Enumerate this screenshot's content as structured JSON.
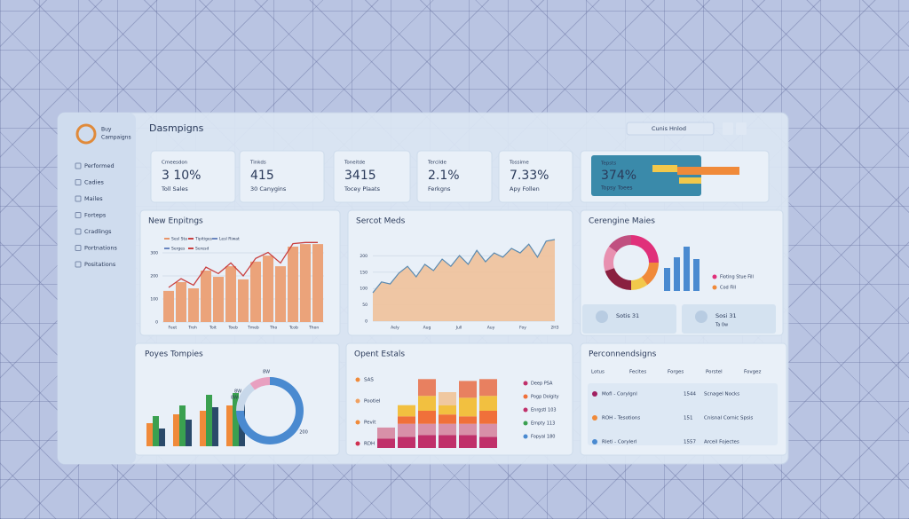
{
  "sidebar": {
    "brand": [
      "Buy",
      "Campaigns"
    ],
    "items": [
      "Performed",
      "Cadies",
      "Mailes",
      "Forteps",
      "Cradlings",
      "Portnations",
      "Positations"
    ]
  },
  "header": {
    "title": "Dasmpigns",
    "search": "Cunis Hnlod"
  },
  "kpis": [
    {
      "label": "Cmeesdon",
      "value": "3 10%",
      "sub": "Toll Sales"
    },
    {
      "label": "Tinkds",
      "value": "415",
      "sub": "30 Canygins"
    },
    {
      "label": "Toneitde",
      "value": "3415",
      "sub": "Tocey Plaats"
    },
    {
      "label": "Tercilde",
      "value": "2.1%",
      "sub": "Ferkgns"
    },
    {
      "label": "Tossime",
      "value": "7.33%",
      "sub": "Apy Follen"
    }
  ],
  "highlight": {
    "label": "Tepsts",
    "value": "374%",
    "sub": "Topsy Toees"
  },
  "new_earnings": {
    "title": "New Enpitngs",
    "legend": [
      {
        "name": "Sesl Sta",
        "color": "#e8956a"
      },
      {
        "name": "Tipitiges",
        "color": "#c94040"
      },
      {
        "name": "Lesl Riwat",
        "color": "#6a86c0"
      },
      {
        "name": "Serges",
        "color": "#6a86c0"
      },
      {
        "name": "Seresd",
        "color": "#c94040"
      }
    ],
    "ylim": [
      0,
      350
    ],
    "yticks": [
      0,
      100,
      200,
      300
    ],
    "xlabels": [
      "Feet",
      "Troh",
      "Toit",
      "Toeb",
      "Tmeb",
      "Tho",
      "Tcob",
      "Thon"
    ],
    "bars": [
      135,
      173,
      146,
      223,
      196,
      242,
      185,
      262,
      288,
      242,
      327,
      338,
      338
    ],
    "line": [
      150,
      188,
      160,
      238,
      210,
      256,
      200,
      276,
      302,
      256,
      340,
      345,
      345
    ]
  },
  "sales_trend": {
    "title": "Sercot Meds",
    "ylim": [
      0,
      250
    ],
    "yticks": [
      0,
      50,
      100,
      150,
      200
    ],
    "xlabels": [
      "Aely",
      "Aug",
      "Jull",
      "Auy",
      "Foy",
      "2H3"
    ],
    "values": [
      87,
      120,
      114,
      147,
      168,
      136,
      174,
      155,
      190,
      168,
      201,
      174,
      217,
      182,
      209,
      196,
      223,
      209,
      236,
      196,
      245,
      250
    ]
  },
  "categories_panel": {
    "title": "Cerengine Maies",
    "donut": [
      {
        "color": "#e0307a",
        "value": 25
      },
      {
        "color": "#f08a3a",
        "value": 15
      },
      {
        "color": "#f2c84b",
        "value": 10
      },
      {
        "color": "#8a2040",
        "value": 20
      },
      {
        "color": "#e890b0",
        "value": 15
      },
      {
        "color": "#c05080",
        "value": 15
      }
    ],
    "bars": [
      26,
      38,
      50,
      36
    ],
    "bar_color": "#4a8ad0",
    "legend": [
      {
        "name": "Fioting Stue Fill",
        "color": "#e0307a"
      },
      {
        "name": "Cod Fill",
        "color": "#f08a3a"
      }
    ],
    "cards": [
      {
        "title": "Sotis 31"
      },
      {
        "title": "Sosi 31",
        "sub": "Ta 0w"
      }
    ]
  },
  "topics": {
    "title": "Poyes Tompies",
    "series": [
      {
        "color": "#f08a3a",
        "values": [
          26,
          36,
          40,
          46
        ]
      },
      {
        "color": "#3aa050",
        "values": [
          34,
          46,
          58,
          60
        ]
      },
      {
        "color": "#2a4a6a",
        "values": [
          20,
          30,
          44,
          48
        ]
      }
    ],
    "donut": [
      {
        "color": "#4a8ad0",
        "value": 75
      },
      {
        "color": "#c8d8ea",
        "value": 15
      },
      {
        "color": "#e8a0c0",
        "value": 10
      }
    ],
    "labels": [
      "8W",
      "8W",
      "8W",
      "200"
    ]
  },
  "estates": {
    "title": "Opent Estals",
    "left_legend": [
      {
        "name": "SAS",
        "color": "#f08a3a"
      },
      {
        "name": "Pootiel",
        "color": "#f0a060"
      },
      {
        "name": "Pevit",
        "color": "#f08a3a"
      },
      {
        "name": "RDH",
        "color": "#d03050"
      }
    ],
    "segments": [
      {
        "color": "#c0306a",
        "values": [
          10,
          12,
          14,
          14,
          14,
          12
        ]
      },
      {
        "color": "#d890a8",
        "values": [
          12,
          14,
          12,
          12,
          12,
          14
        ]
      },
      {
        "color": "#f0703a",
        "values": [
          0,
          8,
          14,
          10,
          8,
          14
        ]
      },
      {
        "color": "#f2c040",
        "values": [
          0,
          12,
          16,
          10,
          20,
          16
        ]
      },
      {
        "color": "#f0c8a0",
        "values": [
          0,
          0,
          0,
          14,
          0,
          0
        ]
      },
      {
        "color": "#e88060",
        "values": [
          0,
          0,
          18,
          0,
          18,
          18
        ]
      }
    ],
    "right_legend": [
      {
        "name": "Deep PSA",
        "color": "#c0306a"
      },
      {
        "name": "Pogp Dolgity",
        "color": "#f0703a"
      },
      {
        "name": "Enrgstl 103",
        "color": "#c0306a"
      },
      {
        "name": "Empty 113",
        "color": "#3aa050"
      },
      {
        "name": "Fopyal 180",
        "color": "#4a8ad0"
      }
    ]
  },
  "recommendations": {
    "title": "Perconnendsigns",
    "headers": [
      "Lotus",
      "Fecites",
      "Forges",
      "Porstel",
      "Fovgez"
    ],
    "rows": [
      {
        "color": "#a02060",
        "cells": [
          "Mofi - Corylgnl",
          "1544",
          "Scnagel Nocks"
        ]
      },
      {
        "color": "#f08a3a",
        "cells": [
          "ROH - Tesotions",
          "151",
          "Cnisnal Cornic Spsis"
        ]
      },
      {
        "color": "#4a8ad0",
        "cells": [
          "Rleti - Corylerl",
          "1557",
          "Arceil Fojectes"
        ]
      }
    ]
  }
}
